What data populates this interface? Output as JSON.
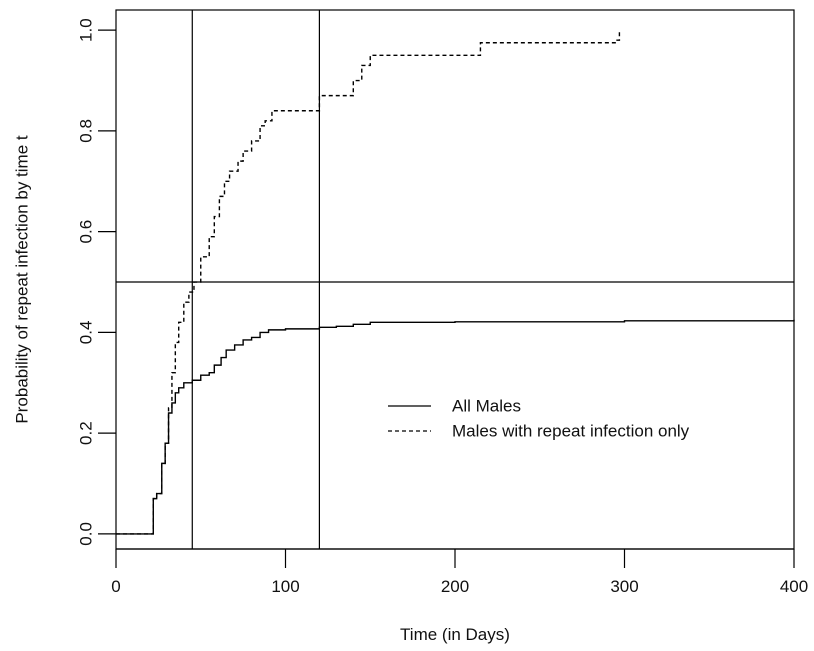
{
  "chart_data": {
    "type": "line",
    "title": "",
    "xlabel": "Time (in Days)",
    "ylabel": "Probability of repeat infection by time t",
    "xlim": [
      0,
      400
    ],
    "ylim": [
      -0.03,
      1.04
    ],
    "x_ticks": [
      0,
      100,
      200,
      300,
      400
    ],
    "y_ticks": [
      0.0,
      0.2,
      0.4,
      0.6,
      0.8,
      1.0
    ],
    "x_tick_labels": [
      "0",
      "100",
      "200",
      "300",
      "400"
    ],
    "y_tick_labels": [
      "0.0",
      "0.2",
      "0.4",
      "0.6",
      "0.8",
      "1.0"
    ],
    "grid": false,
    "legend_position": "center-right",
    "reference_lines": {
      "horizontal": [
        0.5
      ],
      "vertical": [
        45,
        120
      ]
    },
    "series": [
      {
        "name": "All Males",
        "style": "solid",
        "step": true,
        "x": [
          0,
          22,
          24,
          27,
          29,
          31,
          33,
          35,
          37,
          40,
          45,
          50,
          55,
          58,
          62,
          65,
          70,
          75,
          80,
          85,
          90,
          100,
          120,
          130,
          140,
          150,
          200,
          300,
          400
        ],
        "y": [
          0.0,
          0.07,
          0.08,
          0.14,
          0.18,
          0.24,
          0.26,
          0.28,
          0.29,
          0.3,
          0.305,
          0.315,
          0.32,
          0.335,
          0.35,
          0.365,
          0.375,
          0.385,
          0.39,
          0.4,
          0.405,
          0.407,
          0.41,
          0.412,
          0.416,
          0.42,
          0.421,
          0.423,
          0.425
        ]
      },
      {
        "name": "Males with repeat infection only",
        "style": "dashed",
        "step": true,
        "x": [
          0,
          22,
          24,
          27,
          29,
          31,
          33,
          35,
          37,
          40,
          43,
          46,
          50,
          55,
          58,
          61,
          64,
          67,
          72,
          75,
          80,
          85,
          88,
          92,
          100,
          120,
          125,
          135,
          140,
          145,
          150,
          215,
          295,
          297
        ],
        "y": [
          0.0,
          0.07,
          0.08,
          0.14,
          0.18,
          0.25,
          0.32,
          0.38,
          0.42,
          0.46,
          0.48,
          0.5,
          0.55,
          0.59,
          0.63,
          0.67,
          0.7,
          0.72,
          0.74,
          0.76,
          0.78,
          0.81,
          0.82,
          0.84,
          0.84,
          0.87,
          0.87,
          0.87,
          0.9,
          0.93,
          0.95,
          0.975,
          0.98,
          1.0
        ]
      }
    ]
  }
}
